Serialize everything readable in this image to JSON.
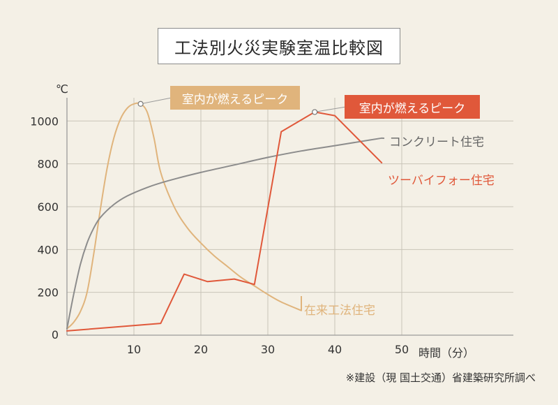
{
  "title": "工法別火災実験室温比較図",
  "y_unit": "℃",
  "x_unit": "時間（分）",
  "source": "※建設（現 国土交通）省建築研究所調べ",
  "colors": {
    "background": "#f4f0e6",
    "grid": "#c9c4b8",
    "axis": "#9a9a9a",
    "wood": "#e0b47c",
    "concrete": "#8c8c8c",
    "twobyfour": "#e0583a"
  },
  "annotations": {
    "peak_wood": "室内が燃えるピーク",
    "peak_twobyfour": "室内が燃えるピーク"
  },
  "chart_data": {
    "type": "line",
    "title": "工法別火災実験室温比較図",
    "xlabel": "時間（分）",
    "ylabel": "℃",
    "xlim": [
      0,
      65
    ],
    "ylim": [
      0,
      1100
    ],
    "x_ticks": [
      10,
      20,
      30,
      40,
      50
    ],
    "y_ticks": [
      0,
      200,
      400,
      600,
      800,
      1000
    ],
    "grid": true,
    "series": [
      {
        "name": "在来工法住宅",
        "key": "wood",
        "x": [
          0,
          1,
          2,
          3,
          4,
          5,
          6,
          7,
          8,
          9,
          10,
          11,
          12,
          13,
          14,
          16,
          18,
          20,
          22,
          24,
          26,
          28,
          30,
          32,
          35
        ],
        "y": [
          30,
          60,
          110,
          200,
          380,
          590,
          780,
          920,
          1010,
          1060,
          1080,
          1080,
          1040,
          920,
          760,
          600,
          500,
          430,
          370,
          320,
          270,
          230,
          190,
          155,
          115
        ]
      },
      {
        "name": "コンクリート住宅",
        "key": "concrete",
        "x": [
          0,
          1,
          2,
          3,
          4,
          5,
          7,
          9,
          12,
          15,
          20,
          25,
          30,
          35,
          40,
          45,
          47
        ],
        "y": [
          30,
          190,
          330,
          430,
          500,
          550,
          610,
          650,
          690,
          720,
          760,
          795,
          830,
          860,
          885,
          910,
          920
        ]
      },
      {
        "name": "ツーバイフォー住宅",
        "key": "twobyfour",
        "x": [
          0,
          14,
          17.5,
          21,
          25,
          28,
          32,
          37,
          40,
          47
        ],
        "y": [
          20,
          55,
          285,
          250,
          262,
          237,
          950,
          1042,
          1025,
          805
        ]
      }
    ],
    "peaks": [
      {
        "series": "在来工法住宅",
        "x": 11,
        "y": 1080
      },
      {
        "series": "ツーバイフォー住宅",
        "x": 37,
        "y": 1042
      }
    ]
  }
}
